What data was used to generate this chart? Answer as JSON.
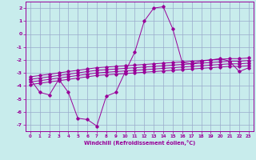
{
  "x": [
    0,
    1,
    2,
    3,
    4,
    5,
    6,
    7,
    8,
    9,
    10,
    11,
    12,
    13,
    14,
    15,
    16,
    17,
    18,
    19,
    20,
    21,
    22,
    23
  ],
  "main_line": [
    -3.5,
    -4.5,
    -4.7,
    -3.5,
    -4.5,
    -6.5,
    -6.6,
    -7.1,
    -4.8,
    -4.5,
    -2.9,
    -1.4,
    1.0,
    2.0,
    2.1,
    0.4,
    -2.2,
    -2.3,
    -2.1,
    -2.0,
    -1.9,
    -2.1,
    -2.9,
    -2.6
  ],
  "trend1": [
    -3.3,
    -3.2,
    -3.1,
    -3.0,
    -2.9,
    -2.8,
    -2.7,
    -2.6,
    -2.55,
    -2.5,
    -2.45,
    -2.4,
    -2.35,
    -2.3,
    -2.25,
    -2.2,
    -2.15,
    -2.1,
    -2.05,
    -2.0,
    -1.95,
    -1.9,
    -1.9,
    -1.85
  ],
  "trend2": [
    -3.5,
    -3.4,
    -3.3,
    -3.2,
    -3.1,
    -3.0,
    -2.9,
    -2.8,
    -2.75,
    -2.7,
    -2.65,
    -2.6,
    -2.55,
    -2.5,
    -2.45,
    -2.4,
    -2.35,
    -2.3,
    -2.25,
    -2.2,
    -2.15,
    -2.1,
    -2.1,
    -2.05
  ],
  "trend3": [
    -3.7,
    -3.6,
    -3.5,
    -3.4,
    -3.3,
    -3.2,
    -3.1,
    -3.0,
    -2.95,
    -2.9,
    -2.85,
    -2.8,
    -2.75,
    -2.7,
    -2.65,
    -2.6,
    -2.55,
    -2.5,
    -2.45,
    -2.4,
    -2.35,
    -2.3,
    -2.3,
    -2.25
  ],
  "trend4": [
    -3.9,
    -3.8,
    -3.7,
    -3.6,
    -3.5,
    -3.4,
    -3.3,
    -3.2,
    -3.15,
    -3.1,
    -3.05,
    -3.0,
    -2.95,
    -2.9,
    -2.85,
    -2.8,
    -2.75,
    -2.7,
    -2.65,
    -2.6,
    -2.55,
    -2.5,
    -2.5,
    -2.45
  ],
  "color": "#990099",
  "bg_color": "#c8ecec",
  "grid_color": "#99aacc",
  "xlabel": "Windchill (Refroidissement éolien,°C)",
  "xlim": [
    -0.5,
    23.5
  ],
  "ylim": [
    -7.5,
    2.5
  ],
  "yticks": [
    -7,
    -6,
    -5,
    -4,
    -3,
    -2,
    -1,
    0,
    1,
    2
  ],
  "xticks": [
    0,
    1,
    2,
    3,
    4,
    5,
    6,
    7,
    8,
    9,
    10,
    11,
    12,
    13,
    14,
    15,
    16,
    17,
    18,
    19,
    20,
    21,
    22,
    23
  ]
}
